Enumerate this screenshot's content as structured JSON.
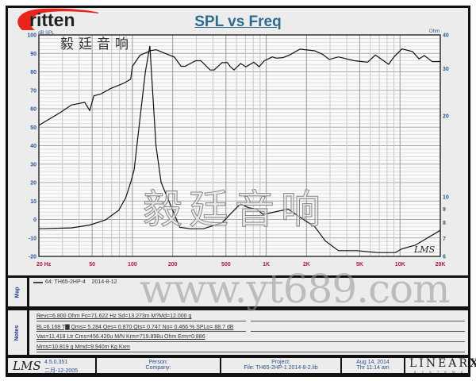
{
  "logo": {
    "brand": "ritten",
    "brand_cn": "毅廷音响",
    "colors": {
      "swoosh": "#e8241c",
      "text": "#222222"
    }
  },
  "watermarks": {
    "cn": "毅廷音响",
    "url": "www.yt689.com",
    "signature": "LMS"
  },
  "chart_data": {
    "type": "line",
    "title": "SPL vs Freq",
    "x_scale": "log",
    "xlim": [
      20,
      20000
    ],
    "x_ticks": [
      "20 Hz",
      "50",
      "100",
      "200",
      "500",
      "1K",
      "2K",
      "5K",
      "10K",
      "20K"
    ],
    "x_tick_values": [
      20,
      50,
      100,
      200,
      500,
      1000,
      2000,
      5000,
      10000,
      20000
    ],
    "y_left": {
      "label": "dB SPL",
      "lim": [
        -20,
        100
      ],
      "ticks": [
        100,
        90,
        80,
        70,
        60,
        50,
        40,
        30,
        20,
        10,
        0,
        -10,
        -20
      ]
    },
    "y_right": {
      "label": "Ohm",
      "scale": "log",
      "lim": [
        6,
        40
      ],
      "ticks": [
        40,
        30,
        20,
        10,
        9,
        8,
        7,
        6
      ]
    },
    "grid": true,
    "colors": {
      "curve": "#111111",
      "left_ticks": "#2a5a9a",
      "x_ticks": "#b0164a",
      "title": "#2f6a8f"
    },
    "series": [
      {
        "axis": "left",
        "unit": "dB SPL",
        "points": [
          [
            20,
            51
          ],
          [
            29,
            58
          ],
          [
            35,
            62
          ],
          [
            44,
            63.5
          ],
          [
            48,
            59
          ],
          [
            51.5,
            67
          ],
          [
            58,
            68
          ],
          [
            69,
            71
          ],
          [
            87,
            74
          ],
          [
            97,
            76
          ],
          [
            100,
            83
          ],
          [
            114,
            89
          ],
          [
            137,
            91.5
          ],
          [
            150,
            92
          ],
          [
            206,
            88
          ],
          [
            231,
            83
          ],
          [
            248,
            83
          ],
          [
            297,
            86
          ],
          [
            325,
            86
          ],
          [
            381,
            81
          ],
          [
            408,
            81
          ],
          [
            468,
            85
          ],
          [
            513,
            85
          ],
          [
            536,
            83
          ],
          [
            574,
            81
          ],
          [
            644,
            84.5
          ],
          [
            705,
            82.7
          ],
          [
            808,
            85.2
          ],
          [
            885,
            82.8
          ],
          [
            969,
            86
          ],
          [
            1111,
            88.1
          ],
          [
            1189,
            87.4
          ],
          [
            1334,
            87.7
          ],
          [
            1494,
            89.1
          ],
          [
            1791,
            92.3
          ],
          [
            2302,
            91.4
          ],
          [
            2638,
            89.5
          ],
          [
            2956,
            86.7
          ],
          [
            3467,
            88.1
          ],
          [
            4552,
            86
          ],
          [
            5716,
            85.2
          ],
          [
            6548,
            89.1
          ],
          [
            8224,
            84.1
          ],
          [
            9015,
            88.1
          ],
          [
            10330,
            92.4
          ],
          [
            12390,
            91
          ],
          [
            13870,
            87
          ],
          [
            15200,
            88.8
          ],
          [
            17420,
            85.5
          ],
          [
            20000,
            85.6
          ]
        ]
      },
      {
        "axis": "right",
        "unit": "Ohm",
        "points": [
          [
            20,
            7.6
          ],
          [
            35,
            7.66
          ],
          [
            48,
            7.85
          ],
          [
            63,
            8.2
          ],
          [
            79,
            8.9
          ],
          [
            89,
            9.9
          ],
          [
            97,
            11.3
          ],
          [
            103,
            12.6
          ],
          [
            114,
            19.6
          ],
          [
            125,
            29.1
          ],
          [
            135,
            36.4
          ],
          [
            150,
            15.5
          ],
          [
            164,
            11.3
          ],
          [
            200,
            8.9
          ],
          [
            226,
            7.7
          ],
          [
            271,
            7.6
          ],
          [
            340,
            7.6
          ],
          [
            468,
            8.0
          ],
          [
            537,
            8.6
          ],
          [
            615,
            9.2
          ],
          [
            644,
            9.4
          ],
          [
            738,
            9.1
          ],
          [
            846,
            9.0
          ],
          [
            948,
            8.6
          ],
          [
            1062,
            8.7
          ],
          [
            1459,
            9.0
          ],
          [
            1918,
            8.2
          ],
          [
            2302,
            7.75
          ],
          [
            2762,
            6.85
          ],
          [
            3467,
            6.3
          ],
          [
            4766,
            6.3
          ],
          [
            6860,
            6.2
          ],
          [
            9210,
            6.2
          ],
          [
            10330,
            6.4
          ],
          [
            12970,
            6.6
          ],
          [
            20000,
            7.5
          ]
        ]
      }
    ]
  },
  "map": {
    "label": "Map",
    "legend": "64: TH65-2HP-4    2014-8-12"
  },
  "notes": {
    "label": "Notes",
    "lines": [
      "Revc=6.800 Ohm  Fo=71.622 Hz  Sd=13.273m M?Md=12.000 g",
      "BL=6.168 T▇  Qms= 5.284  Qes= 0.870  Qts= 0.747  No= 0.466 %  SPLo= 88.7 dB",
      "Vas=11.418 Ltr  Cms=456.420u M/N  Krm=719.898u Ohm  Erm=0.886",
      "Mms=10.819 g  Mmd=9.940m Kg  Kxm"
    ]
  },
  "footer": {
    "logo": "LMS",
    "version": "4.5.0.351",
    "build_date": "二月-12-2005",
    "person": "Person:",
    "company": "Company:",
    "project": "Project:",
    "file": "File: TH65-2HP-1   2014-8-2.lib",
    "date": "Aug 14, 2014",
    "time": "Thr 11:14 am",
    "brand": "LINEAR",
    "brand_x": "X",
    "brand_sub": "S Y S T E M S"
  }
}
